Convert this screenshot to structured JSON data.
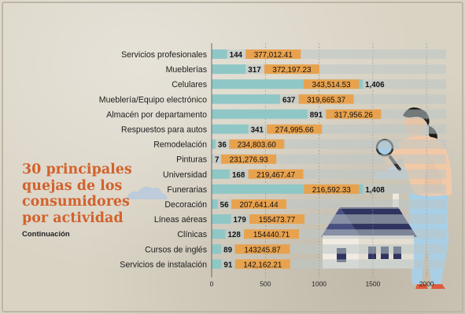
{
  "header": {
    "title": "30 principales quejas de los consumidores por actividad",
    "subtitle": "Continuación"
  },
  "chart_data": {
    "type": "bar",
    "orientation": "horizontal",
    "categories": [
      "Servicios profesionales",
      "Mueblerías",
      "Celulares",
      "Mueblería/Equipo electrónico",
      "Almacén por departamento",
      "Respuestos para autos",
      "Remodelación",
      "Pinturas",
      "Universidad",
      "Funerarias",
      "Decoración",
      "Líneas aéreas",
      "Clínicas",
      "Cursos de inglés",
      "Servicios de instalación"
    ],
    "values": [
      144,
      317,
      1406,
      637,
      891,
      341,
      36,
      7,
      168,
      1408,
      56,
      179,
      128,
      89,
      91
    ],
    "value_labels": [
      "144",
      "317",
      "1,406",
      "637",
      "891",
      "341",
      "36",
      "7",
      "168",
      "1,408",
      "56",
      "179",
      "128",
      "89",
      "91"
    ],
    "amount_labels": [
      "377,012.41",
      "372,197.23",
      "343,514.53",
      "319,665.37",
      "317,956.26",
      "274,995.66",
      "234,803.60",
      "231,276.93",
      "219,467.47",
      "216,592.33",
      "207,641.44",
      "155473.77",
      "154440.71",
      "143245.87",
      "142,162.21"
    ],
    "xlim": [
      0,
      2000
    ],
    "xticks": [
      "0",
      "500",
      "1000",
      "1500",
      "2000"
    ],
    "grid": true,
    "colors": {
      "bar": "#8fc7c6",
      "amount_box": "#e8a24e",
      "track": "#bcc6c6"
    }
  }
}
